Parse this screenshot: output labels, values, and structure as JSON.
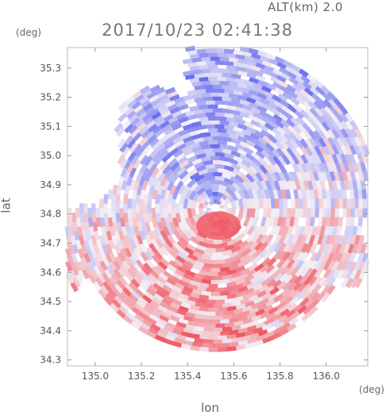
{
  "altitude_label": "ALT(km) 2.0",
  "timestamp": "2017/10/23 02:41:38",
  "chart_data": {
    "type": "heatmap",
    "title": "2017/10/23 02:41:38",
    "subtitle": "ALT(km) 2.0",
    "xlabel": "lon",
    "ylabel": "lat",
    "x_unit": "(deg)",
    "y_unit": "(deg)",
    "xlim": [
      134.88,
      136.18
    ],
    "ylim": [
      34.28,
      35.37
    ],
    "x_ticks": [
      135.0,
      135.2,
      135.4,
      135.6,
      135.8,
      136.0
    ],
    "x_tick_labels": [
      "135.0",
      "135.2",
      "135.4",
      "135.6",
      "135.8",
      "136.0"
    ],
    "y_ticks": [
      34.3,
      34.4,
      34.5,
      34.6,
      34.7,
      34.8,
      34.9,
      35.0,
      35.1,
      35.2,
      35.3
    ],
    "y_tick_labels": [
      "34.3",
      "34.4",
      "34.5",
      "34.6",
      "34.7",
      "34.8",
      "34.9",
      "35.0",
      "35.1",
      "35.2",
      "35.3"
    ],
    "radar_center": [
      135.52,
      34.82
    ],
    "colors": {
      "negative": "#6a6ff0",
      "positive": "#f05a64",
      "neutral": "#f4f0f6",
      "frame": "#bbbbbb"
    },
    "grid": false,
    "legend": "none"
  }
}
